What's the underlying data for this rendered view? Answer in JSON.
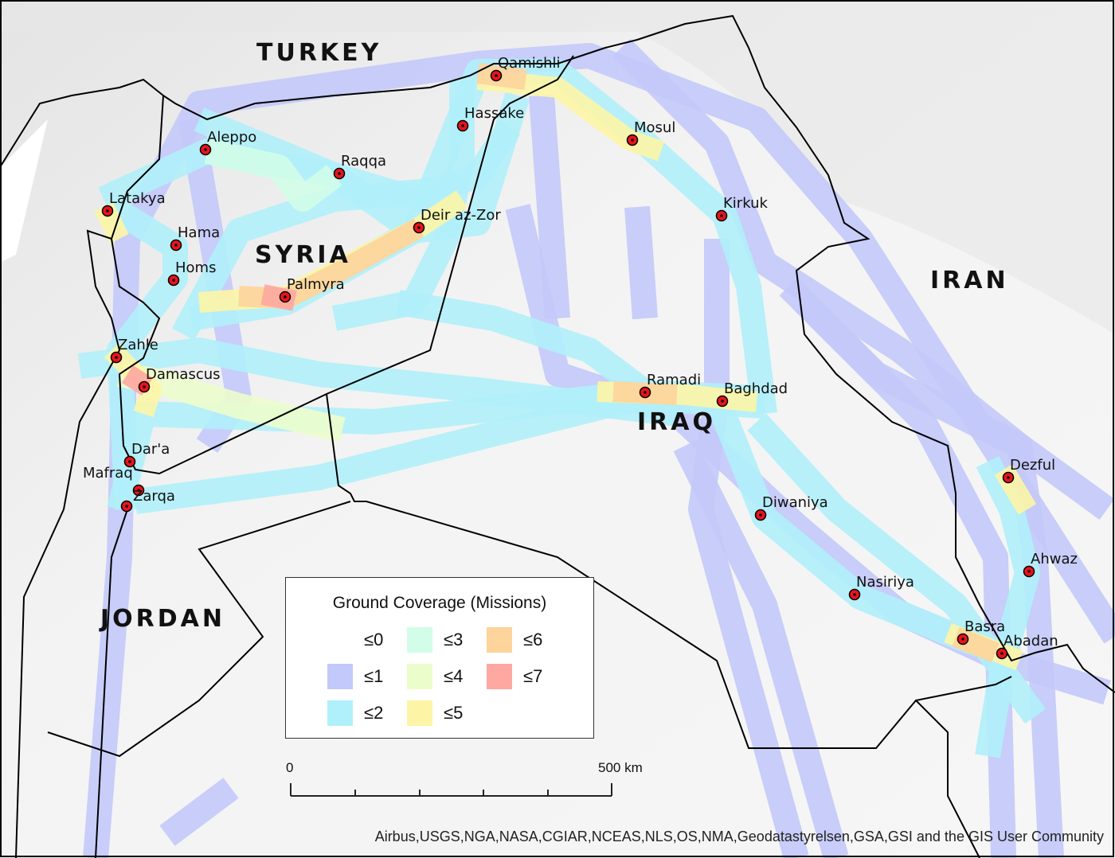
{
  "countries": [
    {
      "name": "TURKEY"
    },
    {
      "name": "SYRIA"
    },
    {
      "name": "IRAN"
    },
    {
      "name": "IRAQ"
    },
    {
      "name": "JORDAN"
    }
  ],
  "cities": [
    {
      "name": "Qamishli"
    },
    {
      "name": "Hassake"
    },
    {
      "name": "Mosul"
    },
    {
      "name": "Aleppo"
    },
    {
      "name": "Raqqa"
    },
    {
      "name": "Latakya"
    },
    {
      "name": "Deir az-Zor"
    },
    {
      "name": "Kirkuk"
    },
    {
      "name": "Hama"
    },
    {
      "name": "Homs"
    },
    {
      "name": "Palmyra"
    },
    {
      "name": "Zahle"
    },
    {
      "name": "Damascus"
    },
    {
      "name": "Ramadi"
    },
    {
      "name": "Baghdad"
    },
    {
      "name": "Dar'a"
    },
    {
      "name": "Mafraq"
    },
    {
      "name": "Zarqa"
    },
    {
      "name": "Dezful"
    },
    {
      "name": "Diwaniya"
    },
    {
      "name": "Ahwaz"
    },
    {
      "name": "Nasiriya"
    },
    {
      "name": "Basra"
    },
    {
      "name": "Abadan"
    }
  ],
  "legend": {
    "title": "Ground Coverage (Missions)",
    "items": [
      {
        "label": "≤0",
        "color": "#ffffff"
      },
      {
        "label": "≤1",
        "color": "#c3c9fa"
      },
      {
        "label": "≤2",
        "color": "#b0f0fa"
      },
      {
        "label": "≤3",
        "color": "#d2fde8"
      },
      {
        "label": "≤4",
        "color": "#ecfdcc"
      },
      {
        "label": "≤5",
        "color": "#fdf5a6"
      },
      {
        "label": "≤6",
        "color": "#fdd49c"
      },
      {
        "label": "≤7",
        "color": "#fda8a0"
      }
    ]
  },
  "scale_bar": {
    "zero_label": "0",
    "max_label": "500 km"
  },
  "attribution": "Airbus,USGS,NGA,NASA,CGIAR,NCEAS,NLS,OS,NMA,Geodatastyrelsen,GSA,GSI and the GIS User Community"
}
